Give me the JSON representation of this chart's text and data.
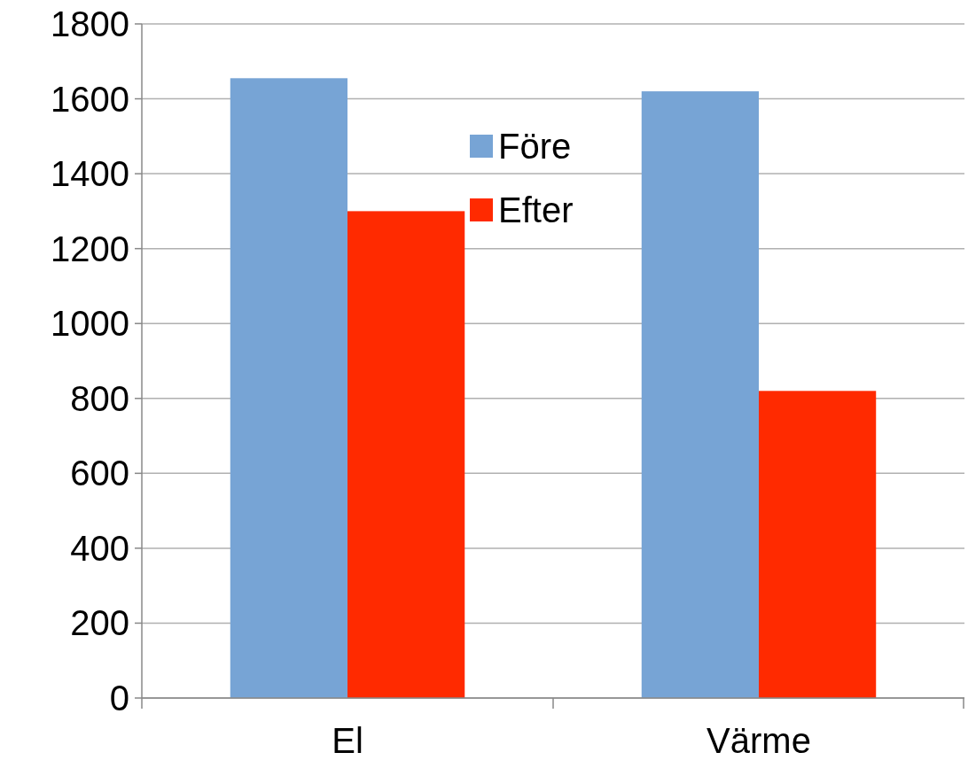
{
  "chart_data": {
    "type": "bar",
    "categories": [
      "El",
      "Värme"
    ],
    "series": [
      {
        "name": "Före",
        "color": "#77a4d5",
        "values": [
          1655,
          1620
        ]
      },
      {
        "name": "Efter",
        "color": "#ff2a00",
        "values": [
          1300,
          820
        ]
      }
    ],
    "ylim": [
      0,
      1800
    ],
    "yticks": [
      0,
      200,
      400,
      600,
      800,
      1000,
      1200,
      1400,
      1600,
      1800
    ],
    "grid": "y",
    "legend": "top"
  }
}
